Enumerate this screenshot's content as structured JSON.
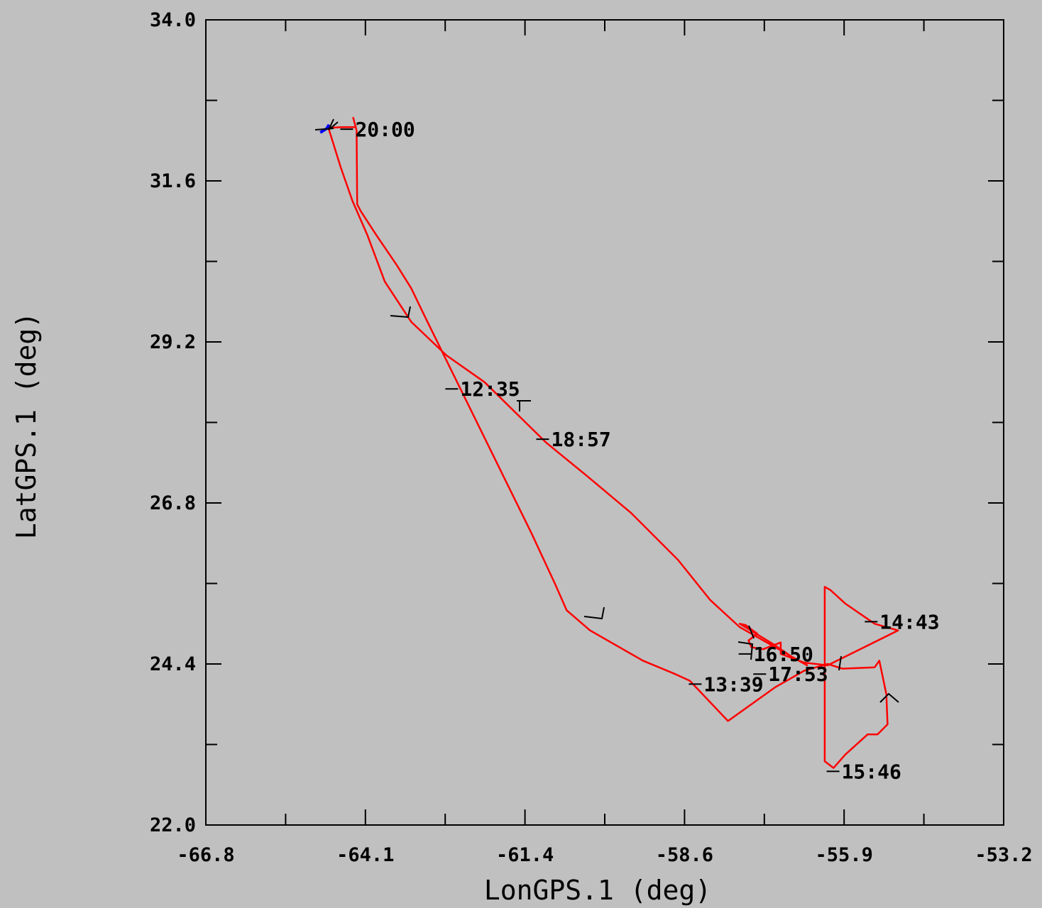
{
  "chart_data": {
    "type": "line",
    "title": "",
    "xlabel": "LonGPS.1 (deg)",
    "ylabel": "LatGPS.1 (deg)",
    "xlim": [
      -66.8,
      -53.2
    ],
    "ylim": [
      22.0,
      34.0
    ],
    "x_ticks": [
      "-66.8",
      "-64.1",
      "-61.4",
      "-58.6",
      "-55.9",
      "-53.2"
    ],
    "y_ticks": [
      "34.0",
      "31.6",
      "29.2",
      "26.8",
      "24.4",
      "22.0"
    ],
    "grid": false,
    "series": [
      {
        "color": "#ff0000",
        "points": [
          [
            -64.29,
            32.55
          ],
          [
            -64.23,
            32.35
          ],
          [
            -64.22,
            31.25
          ],
          [
            -64.16,
            31.15
          ],
          [
            -63.9,
            30.8
          ],
          [
            -63.55,
            30.35
          ],
          [
            -63.3,
            30.0
          ],
          [
            -63.05,
            29.55
          ],
          [
            -62.6,
            28.75
          ],
          [
            -62.15,
            27.95
          ],
          [
            -61.7,
            27.15
          ],
          [
            -61.25,
            26.35
          ],
          [
            -60.85,
            25.6
          ],
          [
            -60.65,
            25.2
          ],
          [
            -60.25,
            24.9
          ],
          [
            -59.35,
            24.45
          ],
          [
            -58.8,
            24.25
          ],
          [
            -58.55,
            24.15
          ],
          [
            -57.9,
            23.55
          ],
          [
            -57.1,
            24.05
          ],
          [
            -56.6,
            24.3
          ],
          [
            -56.2,
            24.4
          ],
          [
            -55.95,
            24.33
          ],
          [
            -55.4,
            24.35
          ],
          [
            -55.32,
            24.45
          ],
          [
            -55.2,
            23.95
          ],
          [
            -55.18,
            23.5
          ],
          [
            -55.35,
            23.35
          ],
          [
            -55.52,
            23.35
          ],
          [
            -55.9,
            23.05
          ],
          [
            -56.1,
            22.85
          ],
          [
            -56.25,
            22.95
          ],
          [
            -56.25,
            25.55
          ],
          [
            -56.15,
            25.5
          ],
          [
            -55.9,
            25.3
          ],
          [
            -55.4,
            25.0
          ],
          [
            -55.0,
            24.9
          ],
          [
            -56.2,
            24.38
          ],
          [
            -56.6,
            24.42
          ],
          [
            -57.0,
            24.55
          ],
          [
            -57.0,
            24.72
          ],
          [
            -57.3,
            24.62
          ],
          [
            -57.5,
            24.65
          ],
          [
            -57.55,
            24.75
          ],
          [
            -57.4,
            24.85
          ],
          [
            -57.6,
            24.98
          ],
          [
            -57.7,
            25.0
          ],
          [
            -57.1,
            24.68
          ],
          [
            -56.8,
            24.5
          ],
          [
            -56.55,
            24.38
          ],
          [
            -57.7,
            24.95
          ],
          [
            -58.2,
            25.35
          ],
          [
            -58.75,
            25.95
          ],
          [
            -59.55,
            26.65
          ],
          [
            -60.3,
            27.2
          ],
          [
            -61.0,
            27.7
          ],
          [
            -61.35,
            28.0
          ],
          [
            -62.05,
            28.6
          ],
          [
            -62.7,
            29.0
          ],
          [
            -63.3,
            29.5
          ],
          [
            -63.75,
            30.1
          ],
          [
            -64.05,
            30.8
          ],
          [
            -64.3,
            31.3
          ],
          [
            -64.5,
            31.8
          ],
          [
            -64.71,
            32.39
          ],
          [
            -64.48,
            32.4
          ],
          [
            -64.23,
            32.4
          ]
        ]
      },
      {
        "color": "#0000ff",
        "points": [
          [
            -64.85,
            32.32
          ],
          [
            -64.74,
            32.38
          ],
          [
            -64.7,
            32.44
          ]
        ]
      }
    ],
    "annotations": [
      {
        "text": "20:00",
        "x": -64.29,
        "y": 32.37
      },
      {
        "text": "12:35",
        "x": -62.5,
        "y": 28.5
      },
      {
        "text": "18:57",
        "x": -60.95,
        "y": 27.75
      },
      {
        "text": "14:43",
        "x": -55.35,
        "y": 25.03
      },
      {
        "text": "16:50",
        "x": -57.5,
        "y": 24.55
      },
      {
        "text": "17:53",
        "x": -57.25,
        "y": 24.25
      },
      {
        "text": "13:39",
        "x": -58.35,
        "y": 24.1
      },
      {
        "text": "15:46",
        "x": -56.0,
        "y": 22.8
      }
    ]
  }
}
